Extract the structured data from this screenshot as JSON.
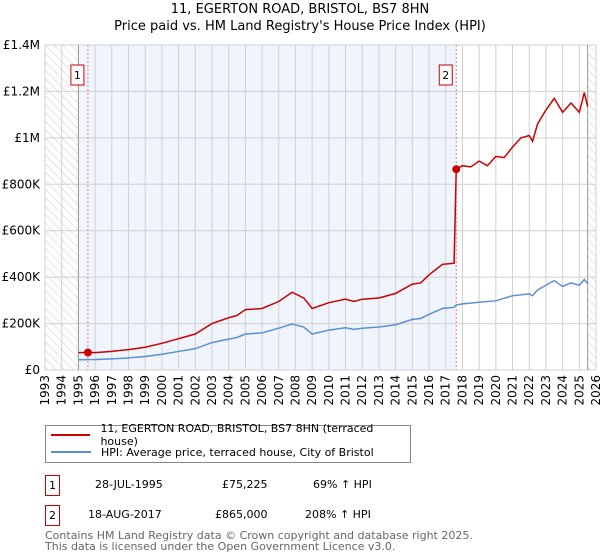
{
  "chart_data": {
    "type": "line",
    "title": "11, EGERTON ROAD, BRISTOL, BS7 8HN",
    "subtitle": "Price paid vs. HM Land Registry's House Price Index (HPI)",
    "xlim": [
      1993,
      2026
    ],
    "ylim": [
      0,
      1400000
    ],
    "x_ticks": [
      "1993",
      "1994",
      "1995",
      "1996",
      "1997",
      "1998",
      "1999",
      "2000",
      "2001",
      "2002",
      "2003",
      "2004",
      "2005",
      "2006",
      "2007",
      "2008",
      "2009",
      "2010",
      "2011",
      "2012",
      "2013",
      "2014",
      "2015",
      "2016",
      "2017",
      "2018",
      "2019",
      "2020",
      "2021",
      "2022",
      "2023",
      "2024",
      "2025",
      "2026"
    ],
    "y_ticks": [
      {
        "v": 0,
        "label": "£0"
      },
      {
        "v": 200000,
        "label": "£200K"
      },
      {
        "v": 400000,
        "label": "£400K"
      },
      {
        "v": 600000,
        "label": "£600K"
      },
      {
        "v": 800000,
        "label": "£800K"
      },
      {
        "v": 1000000,
        "label": "£1M"
      },
      {
        "v": 1200000,
        "label": "£1.2M"
      },
      {
        "v": 1400000,
        "label": "£1.4M"
      }
    ],
    "grid": true,
    "shaded_range": [
      1995.0,
      2017.63
    ],
    "hatched_ranges": [
      [
        1993,
        1995.0
      ],
      [
        2025.5,
        2026
      ]
    ],
    "series": [
      {
        "name": "11, EGERTON ROAD, BRISTOL, BS7 8HN (terraced house)",
        "color": "#cc0000",
        "x": [
          1995.0,
          1995.57,
          1996,
          1997,
          1998,
          1999,
          2000,
          2001,
          2002,
          2003,
          2004,
          2004.5,
          2005,
          2006,
          2007,
          2007.8,
          2008.5,
          2009,
          2010,
          2011,
          2011.5,
          2012,
          2013,
          2014,
          2015,
          2015.5,
          2016,
          2016.8,
          2017.5,
          2017.63,
          2018,
          2018.5,
          2019,
          2019.5,
          2020,
          2020.5,
          2021,
          2021.5,
          2022,
          2022.2,
          2022.5,
          2023,
          2023.5,
          2024,
          2024.5,
          2025,
          2025.3,
          2025.5
        ],
        "y": [
          75000,
          75225,
          75000,
          80000,
          88000,
          98000,
          115000,
          135000,
          155000,
          200000,
          225000,
          235000,
          260000,
          265000,
          295000,
          335000,
          310000,
          265000,
          290000,
          305000,
          295000,
          305000,
          310000,
          330000,
          370000,
          375000,
          410000,
          455000,
          460000,
          865000,
          880000,
          875000,
          900000,
          880000,
          920000,
          915000,
          960000,
          1000000,
          1010000,
          985000,
          1060000,
          1120000,
          1170000,
          1110000,
          1150000,
          1110000,
          1195000,
          1135000
        ]
      },
      {
        "name": "HPI: Average price, terraced house, City of Bristol",
        "color": "#5b8fd6",
        "x": [
          1995.0,
          1996,
          1997,
          1998,
          1999,
          2000,
          2001,
          2002,
          2003,
          2004,
          2004.5,
          2005,
          2006,
          2007,
          2007.8,
          2008.5,
          2009,
          2010,
          2011,
          2011.5,
          2012,
          2013,
          2014,
          2015,
          2015.5,
          2016,
          2016.8,
          2017.5,
          2017.63,
          2018,
          2019,
          2020,
          2021,
          2022,
          2022.2,
          2022.5,
          2023,
          2023.5,
          2024,
          2024.5,
          2025,
          2025.3,
          2025.5
        ],
        "y": [
          44000,
          45000,
          48000,
          52000,
          58000,
          68000,
          80000,
          92000,
          118000,
          133000,
          140000,
          155000,
          160000,
          180000,
          198000,
          185000,
          155000,
          172000,
          182000,
          175000,
          180000,
          185000,
          195000,
          218000,
          222000,
          240000,
          265000,
          270000,
          280000,
          285000,
          292000,
          298000,
          320000,
          328000,
          320000,
          345000,
          365000,
          385000,
          360000,
          375000,
          365000,
          390000,
          372000
        ]
      }
    ],
    "markers": [
      {
        "label": "1",
        "x": 1995.57,
        "y": 75225
      },
      {
        "label": "2",
        "x": 2017.63,
        "y": 865000
      }
    ],
    "legend": "below"
  },
  "transactions": [
    {
      "num": "1",
      "date": "28-JUL-1995",
      "price": "£75,225",
      "hpi": "69% ↑ HPI"
    },
    {
      "num": "2",
      "date": "18-AUG-2017",
      "price": "£865,000",
      "hpi": "208% ↑ HPI"
    }
  ],
  "footer": {
    "line1": "Contains HM Land Registry data © Crown copyright and database right 2025.",
    "line2": "This data is licensed under the Open Government Licence v3.0."
  }
}
